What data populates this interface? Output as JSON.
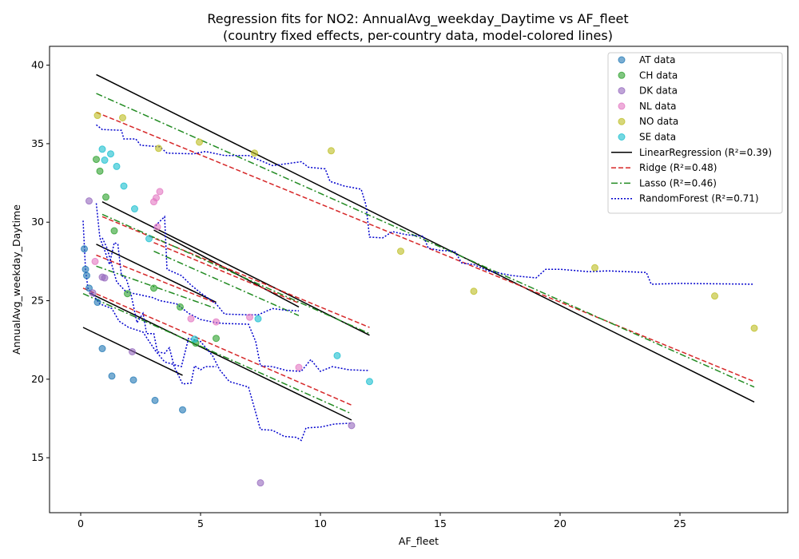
{
  "chart_data": {
    "type": "scatter",
    "title": "Regression fits for NO2: AnnualAvg_weekday_Daytime vs AF_fleet",
    "subtitle": "(country fixed effects, per-country data, model-colored lines)",
    "xlabel": "AF_fleet",
    "ylabel": "AnnualAvg_weekday_Daytime",
    "xlim": [
      -1.3,
      29.5
    ],
    "ylim": [
      11.5,
      41.2
    ],
    "xticks": [
      0,
      5,
      10,
      15,
      20,
      25
    ],
    "yticks": [
      15,
      20,
      25,
      30,
      35,
      40
    ],
    "grid": false,
    "legend_position": "top-right",
    "scatter_series": [
      {
        "name": "AT data",
        "color": "#1f77b4",
        "points": [
          [
            0.15,
            28.3
          ],
          [
            0.2,
            27.0
          ],
          [
            0.25,
            26.6
          ],
          [
            0.35,
            25.8
          ],
          [
            0.7,
            24.9
          ],
          [
            0.9,
            21.95
          ],
          [
            1.3,
            20.2
          ],
          [
            2.2,
            19.95
          ],
          [
            3.1,
            18.65
          ],
          [
            4.25,
            18.05
          ]
        ]
      },
      {
        "name": "CH data",
        "color": "#2ca02c",
        "points": [
          [
            0.65,
            34.0
          ],
          [
            0.8,
            33.25
          ],
          [
            1.05,
            31.6
          ],
          [
            1.4,
            29.45
          ],
          [
            1.95,
            25.45
          ],
          [
            3.05,
            25.8
          ],
          [
            4.15,
            24.6
          ],
          [
            5.65,
            22.6
          ],
          [
            4.8,
            22.3
          ]
        ]
      },
      {
        "name": "DK data",
        "color": "#9467bd",
        "points": [
          [
            0.35,
            31.35
          ],
          [
            0.5,
            25.5
          ],
          [
            0.9,
            26.5
          ],
          [
            1.0,
            26.45
          ],
          [
            2.15,
            21.75
          ],
          [
            11.3,
            17.05
          ],
          [
            7.5,
            13.4
          ]
        ]
      },
      {
        "name": "NL data",
        "color": "#e377c2",
        "points": [
          [
            0.6,
            27.5
          ],
          [
            3.05,
            31.3
          ],
          [
            3.15,
            31.55
          ],
          [
            3.3,
            31.95
          ],
          [
            3.2,
            29.7
          ],
          [
            4.6,
            23.85
          ],
          [
            5.65,
            23.65
          ],
          [
            7.05,
            23.95
          ],
          [
            9.1,
            20.75
          ]
        ]
      },
      {
        "name": "NO data",
        "color": "#bcbd22",
        "points": [
          [
            0.7,
            36.8
          ],
          [
            1.75,
            36.65
          ],
          [
            3.25,
            34.7
          ],
          [
            4.95,
            35.1
          ],
          [
            7.25,
            34.4
          ],
          [
            10.45,
            34.55
          ],
          [
            13.35,
            28.15
          ],
          [
            16.4,
            25.6
          ],
          [
            21.45,
            27.1
          ],
          [
            26.45,
            25.3
          ],
          [
            28.1,
            23.25
          ]
        ]
      },
      {
        "name": "SE data",
        "color": "#17becf",
        "points": [
          [
            0.9,
            34.65
          ],
          [
            1.0,
            33.95
          ],
          [
            1.25,
            34.35
          ],
          [
            1.5,
            33.55
          ],
          [
            1.8,
            32.3
          ],
          [
            2.25,
            30.85
          ],
          [
            2.85,
            28.95
          ],
          [
            4.75,
            22.55
          ],
          [
            7.4,
            23.85
          ],
          [
            10.7,
            21.5
          ],
          [
            12.05,
            19.85
          ]
        ]
      }
    ],
    "lines": [
      {
        "name": "LinearRegression (R²=0.39)",
        "color": "#000000",
        "dash": "solid",
        "segments": [
          [
            [
              0.65,
              39.4
            ],
            [
              28.1,
              18.55
            ]
          ],
          [
            [
              0.65,
              28.6
            ],
            [
              5.65,
              24.9
            ]
          ],
          [
            [
              0.9,
              31.3
            ],
            [
              12.05,
              22.8
            ]
          ],
          [
            [
              0.1,
              23.3
            ],
            [
              4.25,
              20.25
            ]
          ],
          [
            [
              0.35,
              25.5
            ],
            [
              11.3,
              17.4
            ]
          ],
          [
            [
              3.05,
              29.5
            ],
            [
              9.1,
              24.6
            ]
          ]
        ]
      },
      {
        "name": "Ridge (R²=0.48)",
        "color": "#d62728",
        "dash": "dashed",
        "segments": [
          [
            [
              0.65,
              37.0
            ],
            [
              28.1,
              19.85
            ]
          ],
          [
            [
              0.65,
              27.9
            ],
            [
              5.65,
              24.85
            ]
          ],
          [
            [
              0.9,
              30.35
            ],
            [
              12.05,
              23.3
            ]
          ],
          [
            [
              0.1,
              25.8
            ],
            [
              11.3,
              18.35
            ]
          ],
          [
            [
              3.05,
              28.7
            ],
            [
              9.1,
              24.85
            ]
          ]
        ]
      },
      {
        "name": "Lasso (R²=0.46)",
        "color": "#228b22",
        "dash": "dashdot",
        "segments": [
          [
            [
              0.65,
              38.2
            ],
            [
              28.1,
              19.5
            ]
          ],
          [
            [
              0.65,
              27.2
            ],
            [
              5.65,
              24.5
            ]
          ],
          [
            [
              0.9,
              30.5
            ],
            [
              12.05,
              22.9
            ]
          ],
          [
            [
              0.1,
              25.45
            ],
            [
              11.3,
              17.8
            ]
          ],
          [
            [
              3.05,
              28.15
            ],
            [
              9.1,
              24.05
            ]
          ]
        ]
      },
      {
        "name": "RandomForest (R²=0.71)",
        "color": "#0000cd",
        "dash": "dotted",
        "segments": [
          [
            [
              0.65,
              36.2
            ],
            [
              0.9,
              35.9
            ],
            [
              1.7,
              35.85
            ],
            [
              1.8,
              35.3
            ],
            [
              2.3,
              35.3
            ],
            [
              2.5,
              34.9
            ],
            [
              3.3,
              34.8
            ],
            [
              3.6,
              34.4
            ],
            [
              4.7,
              34.35
            ],
            [
              5.2,
              34.5
            ],
            [
              6.0,
              34.25
            ],
            [
              7.0,
              34.25
            ],
            [
              8.0,
              33.6
            ],
            [
              9.2,
              33.85
            ],
            [
              9.5,
              33.5
            ],
            [
              10.2,
              33.4
            ],
            [
              10.4,
              32.6
            ],
            [
              11.0,
              32.3
            ],
            [
              11.7,
              32.1
            ],
            [
              11.9,
              31.1
            ],
            [
              12.05,
              29.05
            ],
            [
              12.6,
              29.0
            ],
            [
              13.0,
              29.4
            ],
            [
              13.6,
              29.2
            ],
            [
              14.3,
              29.1
            ],
            [
              14.5,
              28.35
            ],
            [
              15.0,
              28.2
            ],
            [
              15.6,
              28.15
            ],
            [
              15.9,
              27.4
            ],
            [
              16.4,
              27.3
            ],
            [
              17.0,
              26.9
            ],
            [
              18.0,
              26.6
            ],
            [
              19.0,
              26.45
            ],
            [
              19.4,
              27.0
            ],
            [
              20.0,
              27.0
            ],
            [
              21.2,
              26.85
            ],
            [
              22.0,
              26.9
            ],
            [
              23.6,
              26.8
            ],
            [
              23.8,
              26.05
            ],
            [
              25.0,
              26.1
            ],
            [
              28.1,
              26.05
            ]
          ],
          [
            [
              0.65,
              31.2
            ],
            [
              0.8,
              29.0
            ],
            [
              1.0,
              28.2
            ],
            [
              1.2,
              27.3
            ],
            [
              1.4,
              28.7
            ],
            [
              1.55,
              28.6
            ],
            [
              1.7,
              26.6
            ],
            [
              1.9,
              26.4
            ],
            [
              2.1,
              25.4
            ],
            [
              2.35,
              23.6
            ],
            [
              2.6,
              24.2
            ],
            [
              2.75,
              22.9
            ],
            [
              3.05,
              22.9
            ],
            [
              3.2,
              21.75
            ],
            [
              3.5,
              21.65
            ],
            [
              3.7,
              22.0
            ],
            [
              3.9,
              20.8
            ],
            [
              4.25,
              19.7
            ],
            [
              4.6,
              19.75
            ],
            [
              4.75,
              20.85
            ],
            [
              5.0,
              20.6
            ],
            [
              5.2,
              20.8
            ],
            [
              5.65,
              20.8
            ]
          ],
          [
            [
              0.9,
              29.0
            ],
            [
              1.1,
              28.35
            ],
            [
              1.5,
              26.2
            ],
            [
              1.9,
              25.55
            ],
            [
              2.4,
              25.4
            ],
            [
              3.0,
              25.2
            ],
            [
              3.3,
              25.0
            ],
            [
              4.0,
              24.8
            ],
            [
              4.5,
              24.2
            ],
            [
              5.0,
              23.8
            ],
            [
              5.65,
              23.6
            ],
            [
              6.0,
              23.55
            ],
            [
              7.0,
              23.5
            ],
            [
              7.3,
              22.4
            ],
            [
              7.5,
              20.85
            ],
            [
              8.0,
              20.8
            ],
            [
              8.6,
              20.55
            ],
            [
              9.2,
              20.5
            ],
            [
              9.6,
              21.25
            ],
            [
              10.0,
              20.5
            ],
            [
              10.5,
              20.8
            ],
            [
              11.2,
              20.6
            ],
            [
              12.05,
              20.55
            ]
          ],
          [
            [
              0.1,
              30.1
            ],
            [
              0.2,
              27.0
            ],
            [
              0.3,
              25.8
            ],
            [
              0.5,
              25.4
            ],
            [
              0.8,
              24.8
            ],
            [
              1.3,
              24.5
            ],
            [
              1.6,
              23.7
            ],
            [
              2.0,
              23.3
            ],
            [
              2.6,
              23.0
            ],
            [
              3.1,
              21.85
            ],
            [
              3.5,
              21.1
            ],
            [
              4.2,
              20.8
            ],
            [
              4.5,
              22.6
            ],
            [
              5.0,
              22.4
            ],
            [
              5.5,
              21.5
            ],
            [
              5.8,
              20.6
            ],
            [
              6.2,
              19.85
            ],
            [
              7.0,
              19.5
            ],
            [
              7.5,
              16.8
            ],
            [
              8.0,
              16.75
            ],
            [
              8.5,
              16.35
            ],
            [
              9.0,
              16.3
            ],
            [
              9.2,
              16.1
            ],
            [
              9.4,
              16.9
            ],
            [
              10.0,
              16.95
            ],
            [
              10.6,
              17.15
            ],
            [
              11.3,
              17.2
            ]
          ],
          [
            [
              3.05,
              29.6
            ],
            [
              3.2,
              29.9
            ],
            [
              3.5,
              30.35
            ],
            [
              3.6,
              27.0
            ],
            [
              3.9,
              26.8
            ],
            [
              4.2,
              26.6
            ],
            [
              4.6,
              26.0
            ],
            [
              5.0,
              25.5
            ],
            [
              5.65,
              24.8
            ],
            [
              6.0,
              24.15
            ],
            [
              7.0,
              24.1
            ],
            [
              7.4,
              24.1
            ],
            [
              8.0,
              24.5
            ],
            [
              8.5,
              24.4
            ],
            [
              9.1,
              24.35
            ]
          ]
        ]
      }
    ]
  }
}
